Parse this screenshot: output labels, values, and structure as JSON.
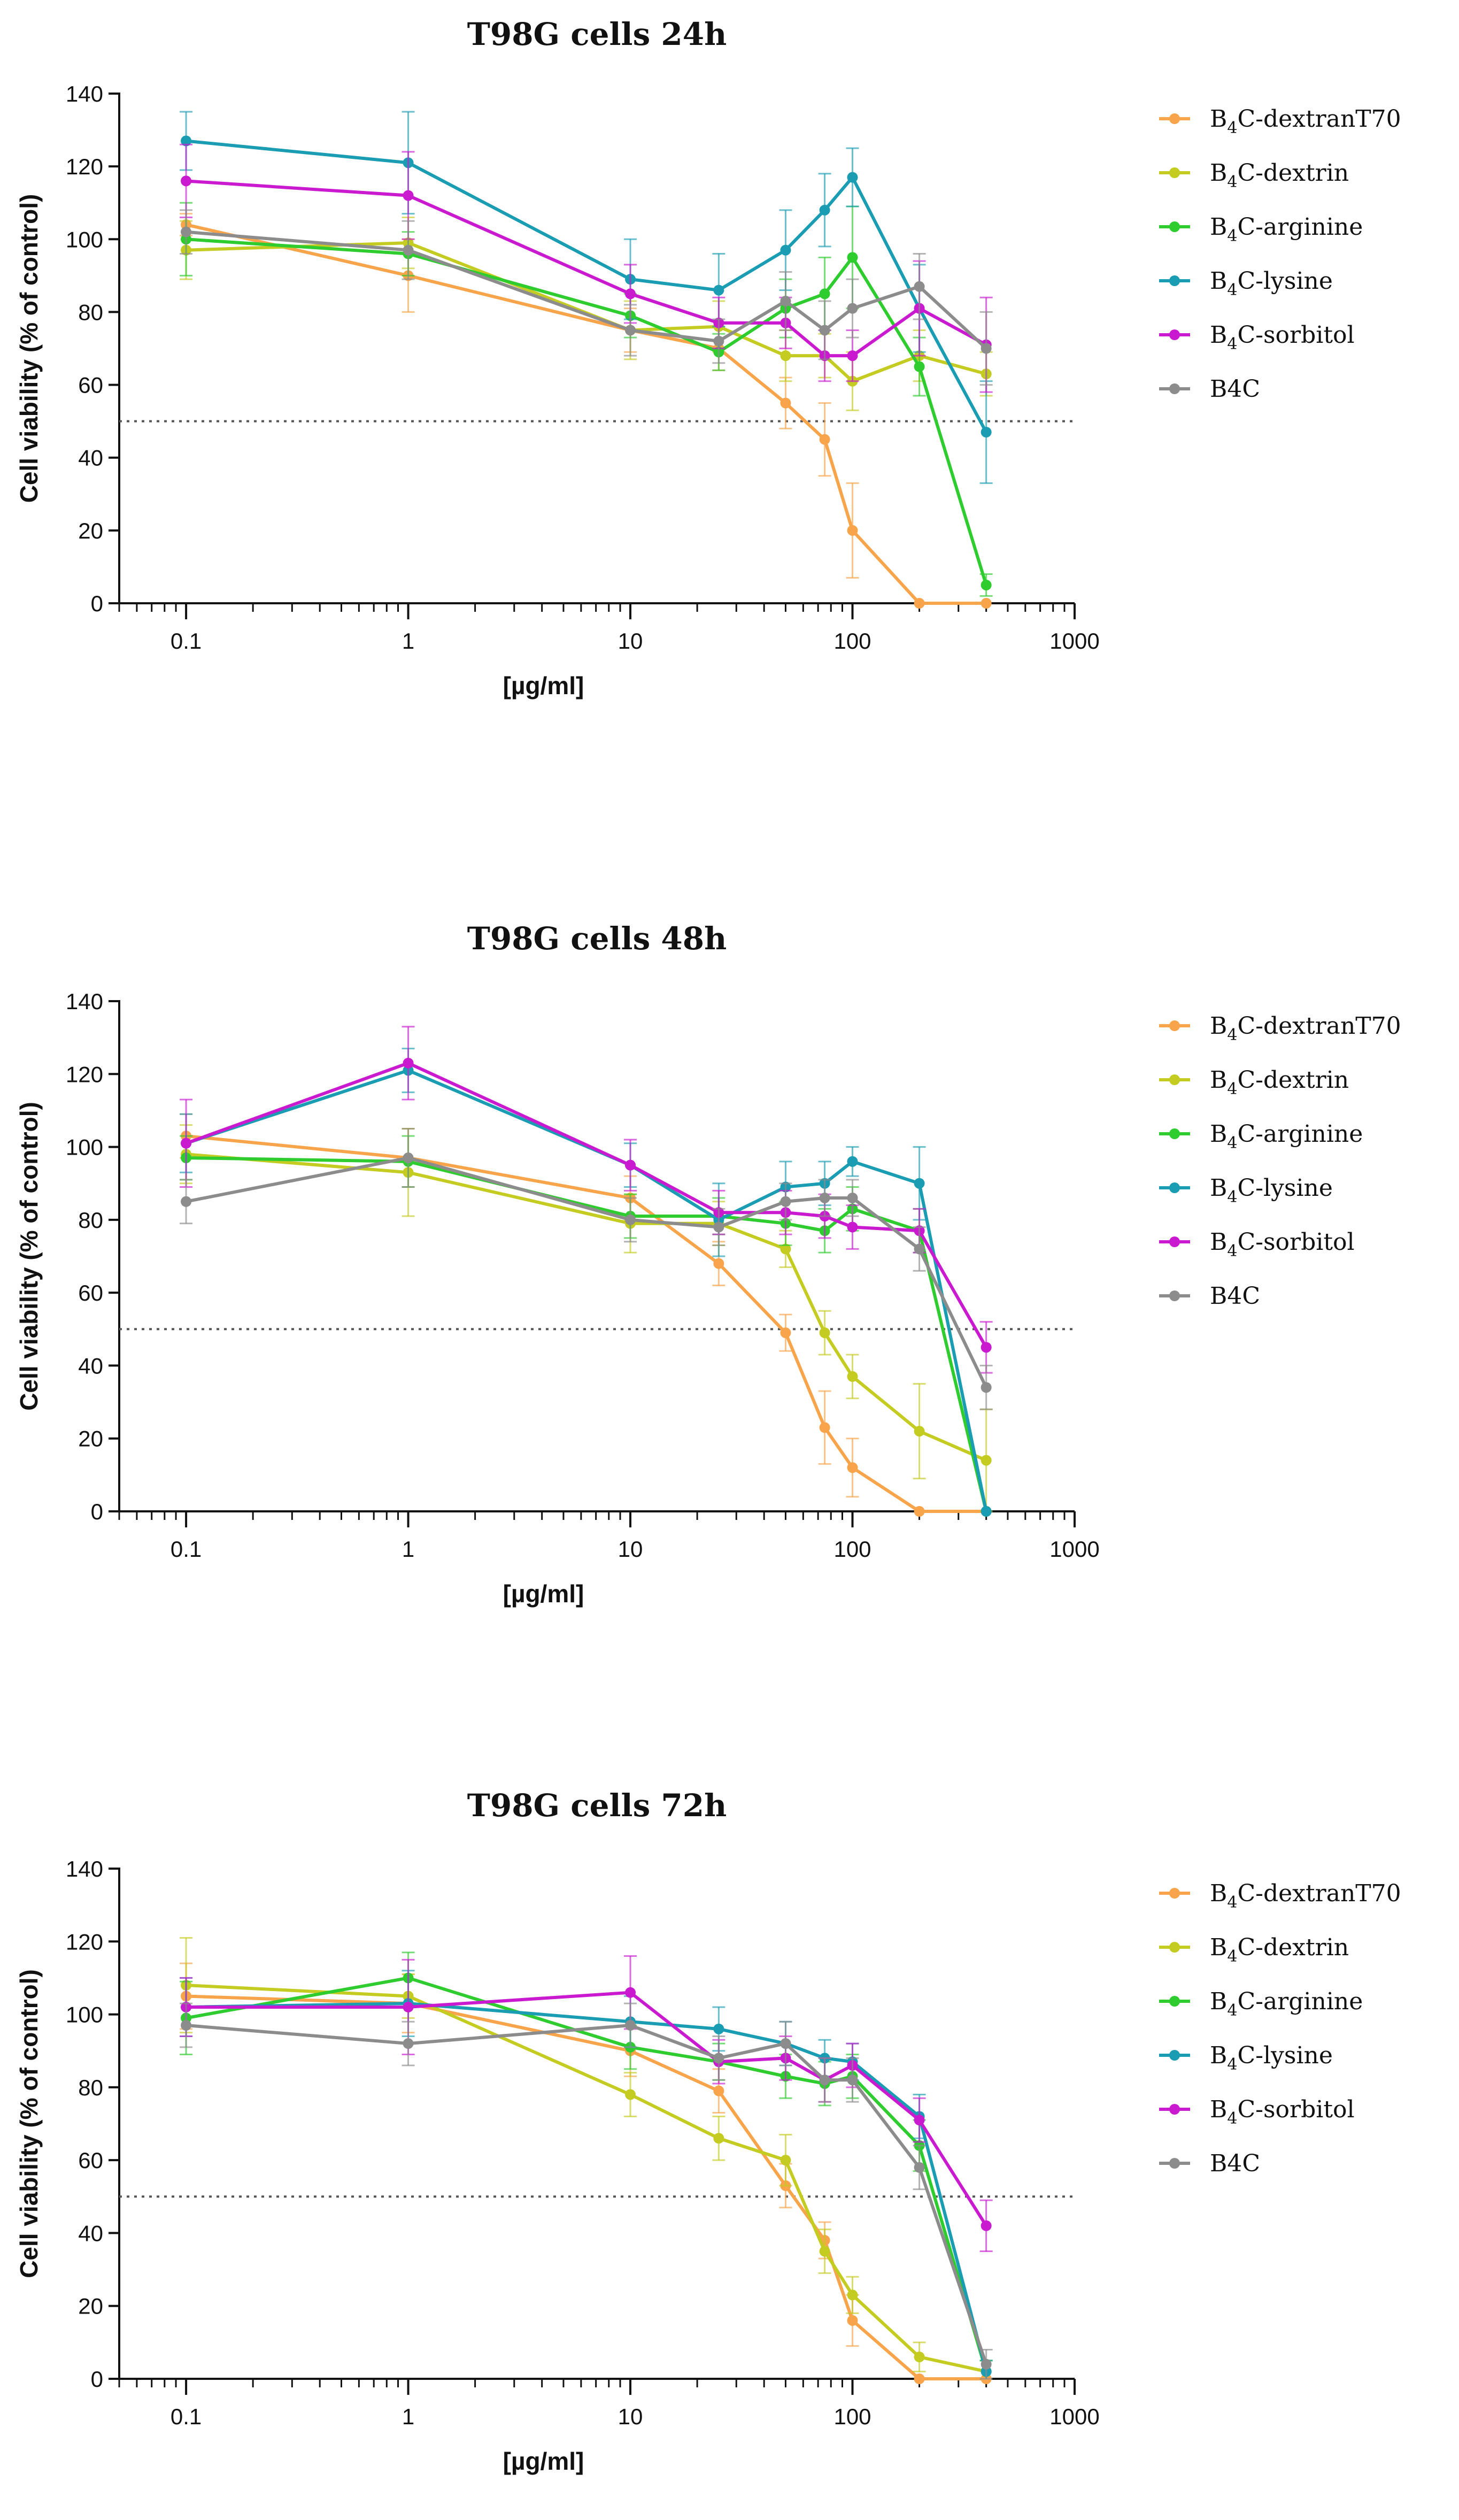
{
  "chart_data": [
    {
      "type": "line",
      "title": "T98G cells 24h",
      "xlabel": "[µg/ml]",
      "ylabel": "Cell viability (% of control)",
      "xscale": "log",
      "xlim": [
        0.05,
        1000
      ],
      "ylim": [
        0,
        140
      ],
      "x_tick_labels": [
        "0.1",
        "1",
        "10",
        "100",
        "1000"
      ],
      "y_tick_labels": [
        "0",
        "20",
        "40",
        "60",
        "80",
        "100",
        "120",
        "140"
      ],
      "threshold_line": 50,
      "legend_position": "right",
      "x": [
        0.1,
        1,
        10,
        25,
        50,
        75,
        100,
        200,
        400
      ],
      "series": [
        {
          "name": "B4C-dextranT70",
          "label_main": "B",
          "label_sub": "4",
          "label_rest": "C-dextranT70",
          "color": "#F7A44A",
          "values": [
            104,
            90,
            75,
            70,
            55,
            45,
            20,
            0,
            0
          ],
          "errors": [
            3,
            10,
            6,
            6,
            7,
            10,
            13,
            0,
            0
          ]
        },
        {
          "name": "B4C-dextrin",
          "label_main": "B",
          "label_sub": "4",
          "label_rest": "C-dextrin",
          "color": "#C4CC22",
          "values": [
            97,
            99,
            75,
            76,
            68,
            68,
            61,
            68,
            63
          ],
          "errors": [
            8,
            7,
            8,
            7,
            7,
            6,
            8,
            7,
            6
          ]
        },
        {
          "name": "B4C-arginine",
          "label_main": "B",
          "label_sub": "4",
          "label_rest": "C-arginine",
          "color": "#2ECC2E",
          "values": [
            100,
            96,
            79,
            69,
            81,
            85,
            95,
            65,
            5
          ],
          "errors": [
            10,
            6,
            6,
            5,
            8,
            10,
            14,
            8,
            3
          ]
        },
        {
          "name": "B4C-lysine",
          "label_main": "B",
          "label_sub": "4",
          "label_rest": "C-lysine",
          "color": "#1A9DB3",
          "values": [
            127,
            121,
            89,
            86,
            97,
            108,
            117,
            81,
            47
          ],
          "errors": [
            8,
            14,
            11,
            10,
            11,
            10,
            8,
            12,
            14
          ]
        },
        {
          "name": "B4C-sorbitol",
          "label_main": "B",
          "label_sub": "4",
          "label_rest": "C-sorbitol",
          "color": "#C91ACF",
          "values": [
            116,
            112,
            85,
            77,
            77,
            68,
            68,
            81,
            71
          ],
          "errors": [
            10,
            12,
            8,
            7,
            7,
            7,
            7,
            13,
            13
          ]
        },
        {
          "name": "B4C",
          "color": "#8C8C8C",
          "values": [
            102,
            97,
            75,
            72,
            83,
            75,
            81,
            87,
            70
          ],
          "errors": [
            6,
            8,
            7,
            6,
            8,
            8,
            8,
            9,
            10
          ]
        }
      ]
    },
    {
      "type": "line",
      "title": "T98G cells 48h",
      "xlabel": "[µg/ml]",
      "ylabel": "Cell viability (% of control)",
      "xscale": "log",
      "xlim": [
        0.05,
        1000
      ],
      "ylim": [
        0,
        140
      ],
      "x_tick_labels": [
        "0.1",
        "1",
        "10",
        "100",
        "1000"
      ],
      "y_tick_labels": [
        "0",
        "20",
        "40",
        "60",
        "80",
        "100",
        "120",
        "140"
      ],
      "threshold_line": 50,
      "legend_position": "right",
      "x": [
        0.1,
        1,
        10,
        25,
        50,
        75,
        100,
        200,
        400
      ],
      "series": [
        {
          "name": "B4C-dextranT70",
          "label_main": "B",
          "label_sub": "4",
          "label_rest": "C-dextranT70",
          "color": "#F7A44A",
          "values": [
            103,
            97,
            86,
            68,
            49,
            23,
            12,
            0,
            0
          ],
          "errors": [
            6,
            8,
            6,
            6,
            5,
            10,
            8,
            0,
            0
          ]
        },
        {
          "name": "B4C-dextrin",
          "label_main": "B",
          "label_sub": "4",
          "label_rest": "C-dextrin",
          "color": "#C4CC22",
          "values": [
            98,
            93,
            79,
            79,
            72,
            49,
            37,
            22,
            14
          ],
          "errors": [
            8,
            12,
            8,
            6,
            5,
            6,
            6,
            13,
            14
          ]
        },
        {
          "name": "B4C-arginine",
          "label_main": "B",
          "label_sub": "4",
          "label_rest": "C-arginine",
          "color": "#2ECC2E",
          "values": [
            97,
            96,
            81,
            81,
            79,
            77,
            83,
            77,
            0
          ],
          "errors": [
            6,
            7,
            6,
            5,
            6,
            6,
            6,
            6,
            0
          ]
        },
        {
          "name": "B4C-lysine",
          "label_main": "B",
          "label_sub": "4",
          "label_rest": "C-lysine",
          "color": "#1A9DB3",
          "values": [
            101,
            121,
            95,
            80,
            89,
            90,
            96,
            90,
            0
          ],
          "errors": [
            8,
            6,
            6,
            10,
            7,
            6,
            4,
            10,
            0
          ]
        },
        {
          "name": "B4C-sorbitol",
          "label_main": "B",
          "label_sub": "4",
          "label_rest": "C-sorbitol",
          "color": "#C91ACF",
          "values": [
            101,
            123,
            95,
            82,
            82,
            81,
            78,
            77,
            45
          ],
          "errors": [
            12,
            10,
            7,
            6,
            6,
            6,
            6,
            6,
            7
          ]
        },
        {
          "name": "B4C",
          "color": "#8C8C8C",
          "values": [
            85,
            97,
            80,
            78,
            85,
            86,
            86,
            72,
            34
          ],
          "errors": [
            6,
            8,
            6,
            5,
            5,
            5,
            5,
            6,
            6
          ]
        }
      ]
    },
    {
      "type": "line",
      "title": "T98G cells 72h",
      "xlabel": "[µg/ml]",
      "ylabel": "Cell viability (% of control)",
      "xscale": "log",
      "xlim": [
        0.05,
        1000
      ],
      "ylim": [
        0,
        140
      ],
      "x_tick_labels": [
        "0.1",
        "1",
        "10",
        "100",
        "1000"
      ],
      "y_tick_labels": [
        "0",
        "20",
        "40",
        "60",
        "80",
        "100",
        "120",
        "140"
      ],
      "threshold_line": 50,
      "legend_position": "right",
      "x": [
        0.1,
        1,
        10,
        25,
        50,
        75,
        100,
        200,
        400
      ],
      "series": [
        {
          "name": "B4C-dextranT70",
          "label_main": "B",
          "label_sub": "4",
          "label_rest": "C-dextranT70",
          "color": "#F7A44A",
          "values": [
            105,
            103,
            90,
            79,
            53,
            38,
            16,
            0,
            0
          ],
          "errors": [
            9,
            8,
            7,
            6,
            6,
            5,
            7,
            0,
            0
          ]
        },
        {
          "name": "B4C-dextrin",
          "label_main": "B",
          "label_sub": "4",
          "label_rest": "C-dextrin",
          "color": "#C4CC22",
          "values": [
            108,
            105,
            78,
            66,
            60,
            35,
            23,
            6,
            2
          ],
          "errors": [
            13,
            6,
            6,
            6,
            7,
            6,
            5,
            4,
            3
          ]
        },
        {
          "name": "B4C-arginine",
          "label_main": "B",
          "label_sub": "4",
          "label_rest": "C-arginine",
          "color": "#2ECC2E",
          "values": [
            99,
            110,
            91,
            87,
            83,
            81,
            83,
            64,
            2
          ],
          "errors": [
            10,
            7,
            6,
            5,
            6,
            6,
            6,
            7,
            3
          ]
        },
        {
          "name": "B4C-lysine",
          "label_main": "B",
          "label_sub": "4",
          "label_rest": "C-lysine",
          "color": "#1A9DB3",
          "values": [
            102,
            103,
            98,
            96,
            92,
            88,
            87,
            72,
            2
          ],
          "errors": [
            8,
            9,
            7,
            6,
            6,
            5,
            5,
            6,
            3
          ]
        },
        {
          "name": "B4C-sorbitol",
          "label_main": "B",
          "label_sub": "4",
          "label_rest": "C-sorbitol",
          "color": "#C91ACF",
          "values": [
            102,
            102,
            106,
            87,
            88,
            82,
            86,
            71,
            42
          ],
          "errors": [
            8,
            13,
            10,
            6,
            6,
            6,
            6,
            6,
            7
          ]
        },
        {
          "name": "B4C",
          "color": "#8C8C8C",
          "values": [
            97,
            92,
            97,
            88,
            92,
            82,
            82,
            58,
            4
          ],
          "errors": [
            6,
            6,
            6,
            6,
            6,
            6,
            6,
            6,
            4
          ]
        }
      ]
    }
  ]
}
